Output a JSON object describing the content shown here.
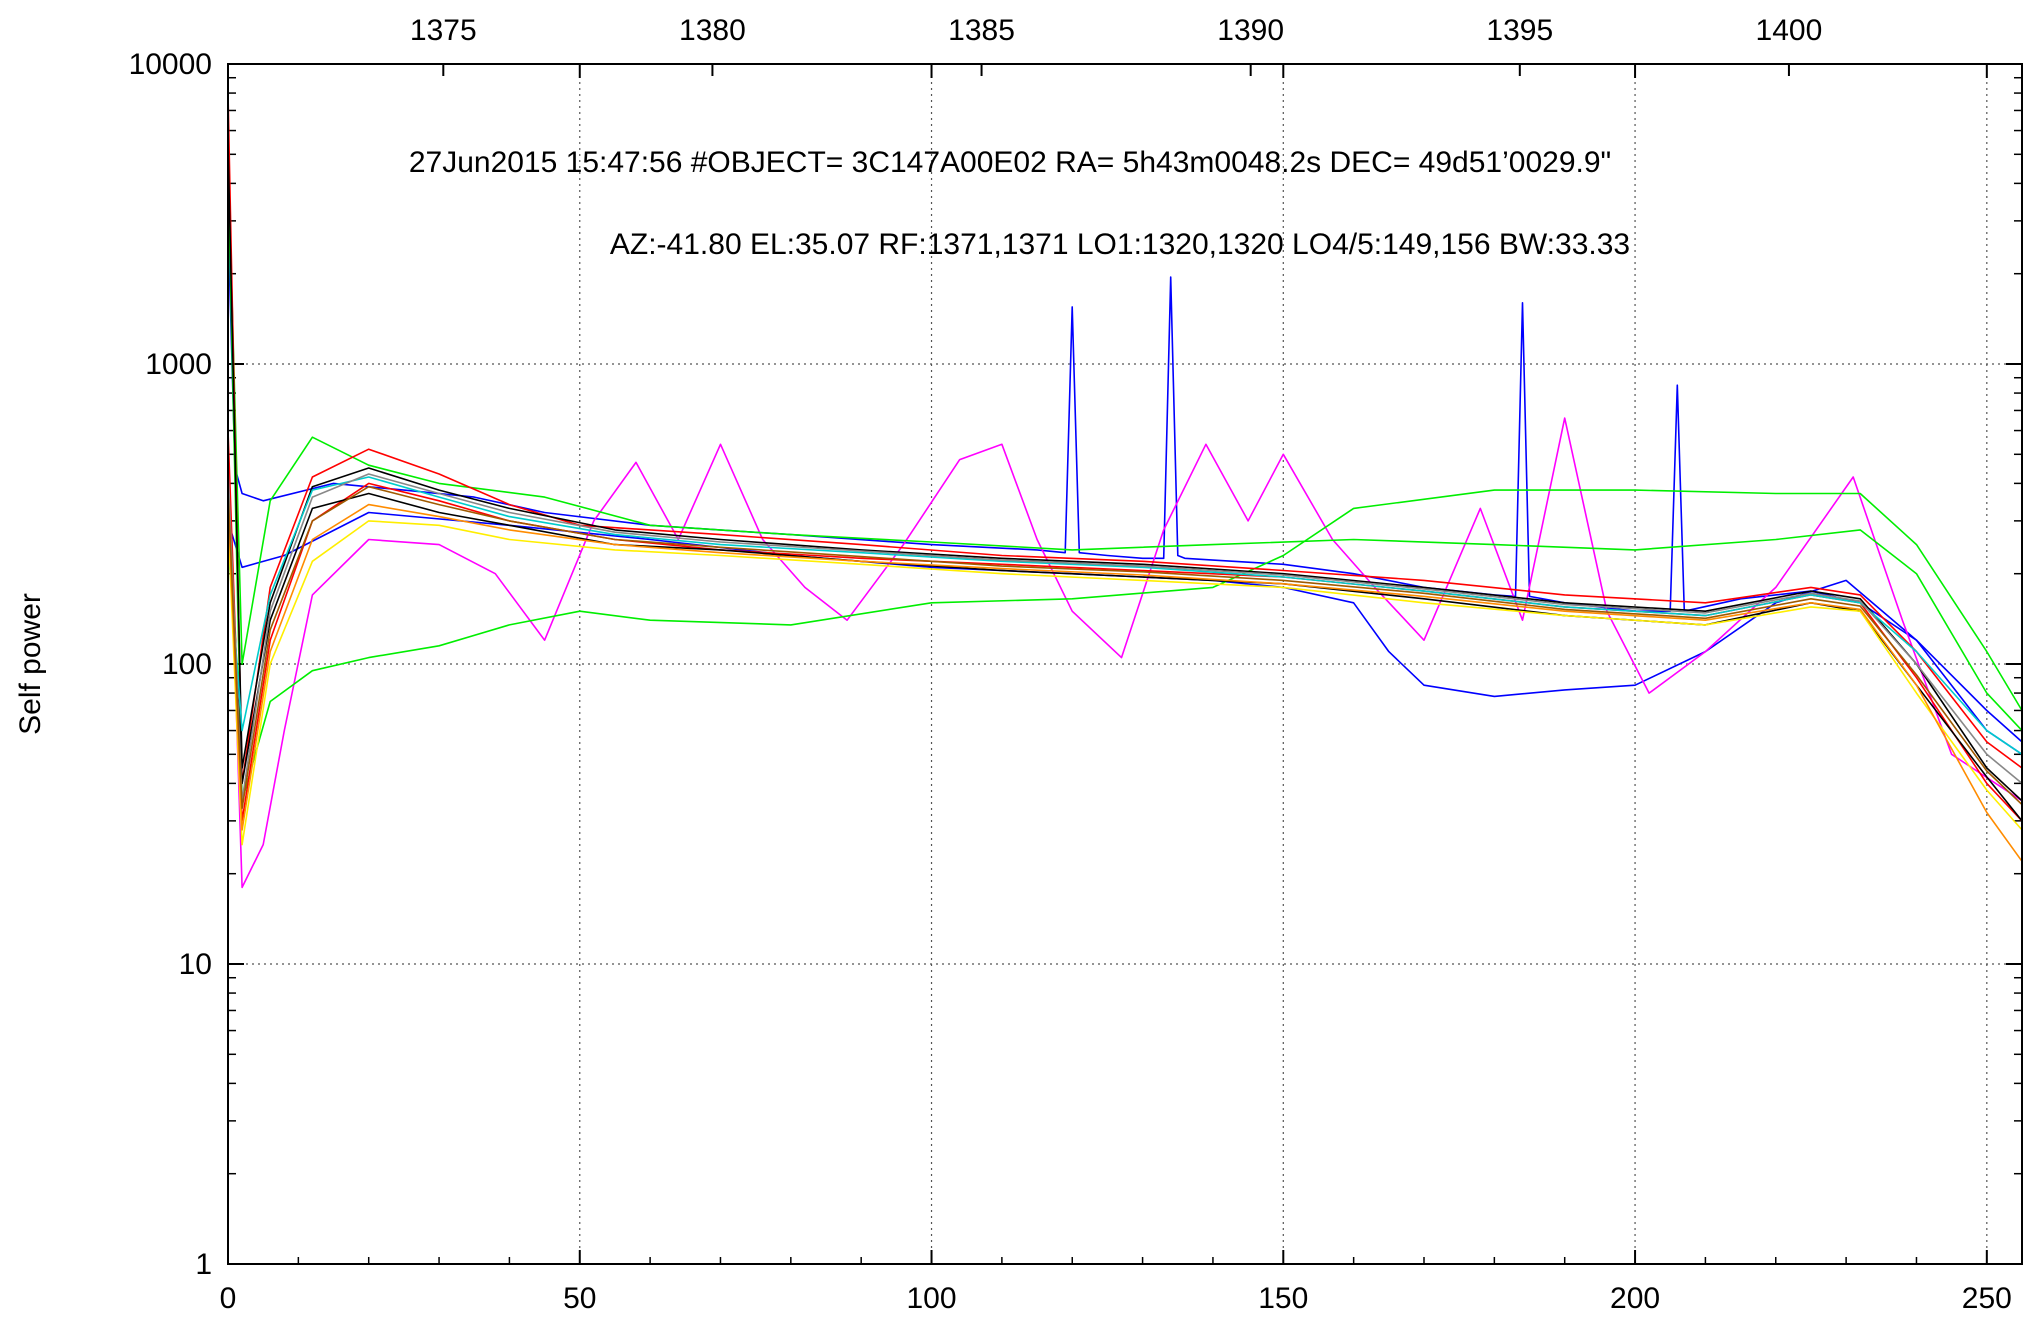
{
  "chart_data": {
    "type": "line",
    "ylabel": "Self power",
    "xlabel": "",
    "yscale": "log",
    "ylim": [
      1,
      10000
    ],
    "xlim": [
      0,
      255
    ],
    "x2lim": [
      1371,
      1404.33
    ],
    "x_ticks": [
      0,
      50,
      100,
      150,
      200,
      250
    ],
    "x_tick_labels": [
      "0",
      "50",
      "100",
      "150",
      "200",
      "250"
    ],
    "x2_ticks": [
      1375,
      1380,
      1385,
      1390,
      1395,
      1400
    ],
    "x2_tick_labels": [
      "1375",
      "1380",
      "1385",
      "1390",
      "1395",
      "1400"
    ],
    "y_ticks": [
      1,
      10,
      100,
      1000,
      10000
    ],
    "y_tick_labels": [
      "1",
      "10",
      "100",
      "1000",
      "10000"
    ],
    "grid": true,
    "legend": "none",
    "info_line1": "27Jun2015 15:47:56  #OBJECT= 3C147A00E02 RA=   5h43m0048.2s DEC=  49d51’0029.9\"",
    "info_line2": "AZ:-41.80  EL:35.07  RF:1371,1371     LO1:1320,1320     LO4/5:149,156     BW:33.33",
    "series_colors": [
      "#ff0000",
      "#00ee00",
      "#0000ff",
      "#ff00ff",
      "#00ffff",
      "#a05a00",
      "#000000",
      "#ff8c00",
      "#ffff00",
      "#888888"
    ],
    "series": [
      {
        "color": "#0000ff",
        "x": [
          0,
          1,
          2,
          5,
          15,
          25,
          35,
          45,
          60,
          80,
          100,
          115,
          119,
          120,
          121,
          125,
          130,
          133,
          134,
          135,
          136,
          140,
          150,
          160,
          170,
          180,
          183,
          184,
          185,
          190,
          200,
          205,
          206,
          207,
          215,
          225,
          232,
          240,
          250,
          255
        ],
        "values": [
          3000,
          450,
          370,
          350,
          400,
          380,
          360,
          320,
          290,
          270,
          250,
          240,
          235,
          1550,
          235,
          230,
          225,
          225,
          1950,
          230,
          225,
          222,
          215,
          200,
          180,
          170,
          168,
          1600,
          168,
          160,
          150,
          150,
          850,
          150,
          165,
          175,
          160,
          120,
          70,
          55
        ]
      },
      {
        "color": "#0000ff",
        "x": [
          0,
          2,
          8,
          20,
          40,
          60,
          80,
          100,
          120,
          140,
          150,
          160,
          165,
          170,
          180,
          190,
          200,
          210,
          220,
          230,
          240,
          250,
          255
        ],
        "values": [
          300,
          210,
          230,
          320,
          290,
          260,
          230,
          210,
          200,
          190,
          180,
          160,
          110,
          85,
          78,
          82,
          85,
          110,
          160,
          190,
          120,
          60,
          50
        ]
      },
      {
        "color": "#ff00ff",
        "x": [
          0,
          2,
          5,
          8,
          12,
          20,
          30,
          38,
          45,
          52,
          58,
          64,
          70,
          76,
          82,
          88,
          96,
          104,
          110,
          115,
          120,
          127,
          133,
          139,
          145,
          150,
          157,
          163,
          170,
          178,
          184,
          190,
          196,
          202,
          210,
          220,
          231,
          238,
          245,
          255
        ],
        "values": [
          500,
          18,
          25,
          60,
          170,
          260,
          250,
          200,
          120,
          300,
          470,
          260,
          540,
          260,
          180,
          140,
          250,
          480,
          540,
          260,
          150,
          105,
          280,
          540,
          300,
          500,
          260,
          180,
          120,
          330,
          140,
          660,
          150,
          80,
          110,
          180,
          420,
          140,
          50,
          35
        ]
      },
      {
        "color": "#00ee00",
        "x": [
          0,
          2,
          6,
          12,
          20,
          30,
          40,
          50,
          60,
          80,
          100,
          120,
          140,
          150,
          160,
          180,
          200,
          220,
          232,
          240,
          250,
          255
        ],
        "values": [
          4500,
          35,
          75,
          95,
          105,
          115,
          135,
          150,
          140,
          135,
          160,
          165,
          180,
          230,
          330,
          380,
          380,
          370,
          370,
          250,
          110,
          70
        ]
      },
      {
        "color": "#00ee00",
        "x": [
          0,
          2,
          6,
          12,
          20,
          30,
          45,
          60,
          80,
          100,
          120,
          140,
          160,
          180,
          200,
          220,
          232,
          240,
          250,
          255
        ],
        "values": [
          5000,
          100,
          350,
          570,
          460,
          400,
          360,
          290,
          270,
          255,
          240,
          250,
          260,
          250,
          240,
          260,
          280,
          200,
          80,
          60
        ]
      },
      {
        "color": "#ff0000",
        "x": [
          0,
          2,
          6,
          12,
          20,
          30,
          40,
          50,
          70,
          90,
          110,
          130,
          150,
          170,
          190,
          210,
          225,
          232,
          240,
          250,
          255
        ],
        "values": [
          8000,
          40,
          180,
          420,
          520,
          430,
          340,
          290,
          270,
          250,
          230,
          220,
          205,
          190,
          170,
          160,
          180,
          170,
          110,
          55,
          45
        ]
      },
      {
        "color": "#ff0000",
        "x": [
          0,
          2,
          6,
          12,
          20,
          30,
          40,
          55,
          70,
          90,
          110,
          130,
          150,
          170,
          190,
          210,
          225,
          232,
          240,
          250,
          255
        ],
        "values": [
          600,
          30,
          120,
          300,
          400,
          350,
          300,
          260,
          240,
          225,
          215,
          205,
          195,
          175,
          155,
          145,
          170,
          160,
          90,
          40,
          30
        ]
      },
      {
        "color": "#000000",
        "x": [
          0,
          2,
          6,
          12,
          20,
          30,
          40,
          55,
          70,
          90,
          110,
          130,
          150,
          170,
          190,
          210,
          225,
          232,
          240,
          250,
          255
        ],
        "values": [
          5500,
          45,
          160,
          390,
          450,
          380,
          330,
          280,
          260,
          240,
          225,
          215,
          200,
          180,
          160,
          150,
          175,
          165,
          100,
          45,
          35
        ]
      },
      {
        "color": "#000000",
        "x": [
          0,
          2,
          6,
          12,
          20,
          30,
          40,
          55,
          70,
          90,
          110,
          130,
          150,
          170,
          190,
          210,
          225,
          232,
          240,
          250,
          255
        ],
        "values": [
          400,
          40,
          140,
          330,
          370,
          320,
          290,
          250,
          240,
          220,
          205,
          195,
          185,
          165,
          145,
          135,
          160,
          150,
          85,
          42,
          30
        ]
      },
      {
        "color": "#00cccc",
        "x": [
          0,
          2,
          6,
          12,
          20,
          30,
          40,
          55,
          70,
          90,
          110,
          130,
          150,
          170,
          190,
          210,
          225,
          232,
          240,
          250,
          255
        ],
        "values": [
          250,
          60,
          170,
          380,
          420,
          360,
          310,
          270,
          250,
          235,
          220,
          210,
          195,
          175,
          155,
          145,
          170,
          160,
          110,
          60,
          50
        ]
      },
      {
        "color": "#ffee00",
        "x": [
          0,
          2,
          6,
          12,
          20,
          30,
          40,
          55,
          70,
          90,
          110,
          130,
          150,
          170,
          190,
          210,
          225,
          232,
          240,
          250,
          255
        ],
        "values": [
          300,
          25,
          100,
          220,
          300,
          290,
          260,
          240,
          230,
          215,
          200,
          190,
          180,
          160,
          145,
          135,
          155,
          150,
          80,
          38,
          28
        ]
      },
      {
        "color": "#888888",
        "x": [
          0,
          2,
          6,
          12,
          20,
          30,
          40,
          55,
          70,
          90,
          110,
          130,
          150,
          170,
          190,
          210,
          225,
          232,
          240,
          250,
          255
        ],
        "values": [
          450,
          35,
          150,
          360,
          430,
          370,
          320,
          275,
          255,
          238,
          222,
          212,
          198,
          178,
          158,
          148,
          172,
          162,
          100,
          50,
          40
        ]
      },
      {
        "color": "#ff8c00",
        "x": [
          0,
          2,
          6,
          12,
          20,
          30,
          40,
          55,
          70,
          90,
          110,
          130,
          150,
          170,
          190,
          210,
          225,
          232,
          240,
          250,
          255
        ],
        "values": [
          350,
          28,
          110,
          260,
          340,
          310,
          280,
          250,
          235,
          220,
          208,
          198,
          185,
          168,
          150,
          140,
          160,
          152,
          85,
          32,
          22
        ]
      },
      {
        "color": "#a05a00",
        "x": [
          0,
          2,
          6,
          12,
          20,
          30,
          40,
          55,
          70,
          90,
          110,
          130,
          150,
          170,
          190,
          210,
          225,
          232,
          240,
          250,
          255
        ],
        "values": [
          380,
          33,
          130,
          300,
          390,
          340,
          300,
          260,
          245,
          228,
          212,
          203,
          190,
          172,
          152,
          142,
          165,
          156,
          92,
          44,
          34
        ]
      }
    ]
  }
}
